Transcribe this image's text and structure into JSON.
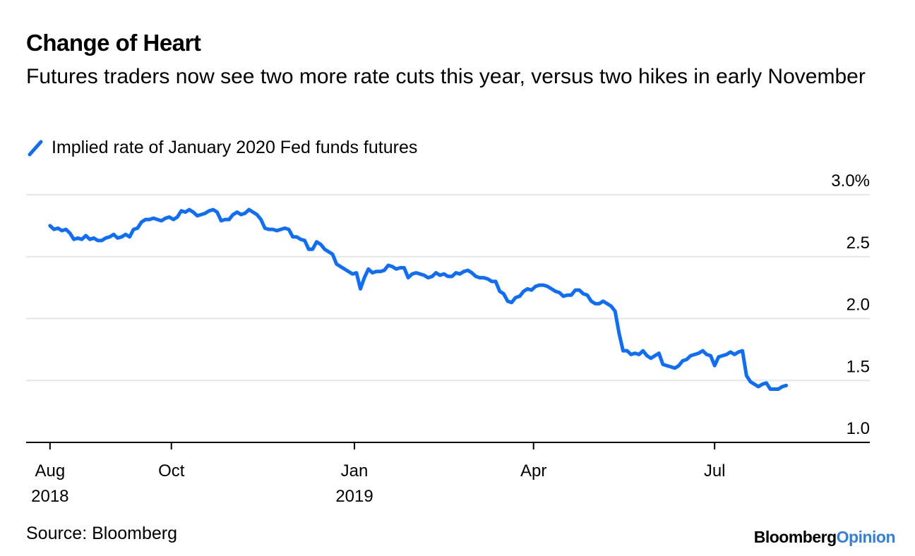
{
  "header": {
    "title": "Change of Heart",
    "subtitle": "Futures traders now see two more rate cuts this year, versus two hikes in early November"
  },
  "legend": {
    "label": "Implied rate of January 2020 Fed funds futures"
  },
  "footer": {
    "source": "Source: Bloomberg",
    "brand_main": "Bloomberg",
    "brand_accent": "Opinion"
  },
  "colors": {
    "series": "#0d6efd",
    "grid": "#e6e6e6",
    "axis": "#000000",
    "brand_accent": "#2f7fe6"
  },
  "chart_data": {
    "type": "line",
    "title": "Change of Heart",
    "xlabel": "",
    "ylabel": "",
    "ylim": [
      1.0,
      3.0
    ],
    "y_ticks": [
      {
        "value": 1.0,
        "label": "1.0"
      },
      {
        "value": 1.5,
        "label": "1.5"
      },
      {
        "value": 2.0,
        "label": "2.0"
      },
      {
        "value": 2.5,
        "label": "2.5"
      },
      {
        "value": 3.0,
        "label": "3.0%"
      }
    ],
    "x_ticks": [
      {
        "day": 0,
        "label": "Aug",
        "sublabel": "2018"
      },
      {
        "day": 61,
        "label": "Oct",
        "sublabel": ""
      },
      {
        "day": 153,
        "label": "Jan",
        "sublabel": "2019"
      },
      {
        "day": 243,
        "label": "Apr",
        "sublabel": ""
      },
      {
        "day": 334,
        "label": "Jul",
        "sublabel": ""
      }
    ],
    "x_range_days": [
      -12,
      412
    ],
    "series": [
      {
        "name": "Implied rate of January 2020 Fed funds futures",
        "points": [
          [
            0,
            2.75
          ],
          [
            2,
            2.72
          ],
          [
            4,
            2.73
          ],
          [
            6,
            2.71
          ],
          [
            8,
            2.72
          ],
          [
            10,
            2.69
          ],
          [
            12,
            2.64
          ],
          [
            14,
            2.65
          ],
          [
            16,
            2.64
          ],
          [
            18,
            2.67
          ],
          [
            20,
            2.64
          ],
          [
            22,
            2.65
          ],
          [
            24,
            2.63
          ],
          [
            26,
            2.63
          ],
          [
            28,
            2.65
          ],
          [
            30,
            2.66
          ],
          [
            32,
            2.68
          ],
          [
            34,
            2.65
          ],
          [
            36,
            2.66
          ],
          [
            38,
            2.68
          ],
          [
            40,
            2.66
          ],
          [
            42,
            2.72
          ],
          [
            44,
            2.73
          ],
          [
            46,
            2.78
          ],
          [
            48,
            2.8
          ],
          [
            50,
            2.8
          ],
          [
            52,
            2.81
          ],
          [
            54,
            2.8
          ],
          [
            56,
            2.79
          ],
          [
            58,
            2.81
          ],
          [
            60,
            2.82
          ],
          [
            62,
            2.8
          ],
          [
            64,
            2.82
          ],
          [
            66,
            2.87
          ],
          [
            68,
            2.86
          ],
          [
            70,
            2.88
          ],
          [
            72,
            2.86
          ],
          [
            74,
            2.83
          ],
          [
            76,
            2.84
          ],
          [
            78,
            2.85
          ],
          [
            80,
            2.87
          ],
          [
            82,
            2.88
          ],
          [
            84,
            2.86
          ],
          [
            86,
            2.79
          ],
          [
            88,
            2.8
          ],
          [
            90,
            2.8
          ],
          [
            92,
            2.84
          ],
          [
            94,
            2.86
          ],
          [
            96,
            2.84
          ],
          [
            98,
            2.85
          ],
          [
            100,
            2.88
          ],
          [
            102,
            2.86
          ],
          [
            104,
            2.84
          ],
          [
            106,
            2.8
          ],
          [
            108,
            2.73
          ],
          [
            110,
            2.72
          ],
          [
            112,
            2.72
          ],
          [
            114,
            2.71
          ],
          [
            116,
            2.72
          ],
          [
            118,
            2.73
          ],
          [
            120,
            2.72
          ],
          [
            122,
            2.66
          ],
          [
            124,
            2.66
          ],
          [
            126,
            2.64
          ],
          [
            128,
            2.63
          ],
          [
            130,
            2.56
          ],
          [
            132,
            2.56
          ],
          [
            134,
            2.62
          ],
          [
            136,
            2.6
          ],
          [
            138,
            2.56
          ],
          [
            140,
            2.54
          ],
          [
            142,
            2.52
          ],
          [
            144,
            2.44
          ],
          [
            146,
            2.42
          ],
          [
            148,
            2.4
          ],
          [
            150,
            2.38
          ],
          [
            152,
            2.36
          ],
          [
            154,
            2.37
          ],
          [
            156,
            2.24
          ],
          [
            158,
            2.33
          ],
          [
            160,
            2.4
          ],
          [
            162,
            2.37
          ],
          [
            164,
            2.38
          ],
          [
            166,
            2.38
          ],
          [
            168,
            2.39
          ],
          [
            170,
            2.43
          ],
          [
            172,
            2.42
          ],
          [
            174,
            2.4
          ],
          [
            176,
            2.41
          ],
          [
            178,
            2.41
          ],
          [
            180,
            2.33
          ],
          [
            182,
            2.36
          ],
          [
            184,
            2.37
          ],
          [
            186,
            2.36
          ],
          [
            188,
            2.35
          ],
          [
            190,
            2.33
          ],
          [
            192,
            2.34
          ],
          [
            194,
            2.37
          ],
          [
            196,
            2.35
          ],
          [
            198,
            2.36
          ],
          [
            200,
            2.34
          ],
          [
            202,
            2.34
          ],
          [
            204,
            2.37
          ],
          [
            206,
            2.36
          ],
          [
            208,
            2.38
          ],
          [
            210,
            2.39
          ],
          [
            212,
            2.37
          ],
          [
            214,
            2.34
          ],
          [
            216,
            2.33
          ],
          [
            218,
            2.33
          ],
          [
            220,
            2.32
          ],
          [
            222,
            2.3
          ],
          [
            224,
            2.3
          ],
          [
            226,
            2.22
          ],
          [
            228,
            2.2
          ],
          [
            230,
            2.14
          ],
          [
            232,
            2.13
          ],
          [
            234,
            2.17
          ],
          [
            236,
            2.18
          ],
          [
            238,
            2.22
          ],
          [
            240,
            2.24
          ],
          [
            242,
            2.23
          ],
          [
            244,
            2.26
          ],
          [
            246,
            2.27
          ],
          [
            248,
            2.27
          ],
          [
            250,
            2.26
          ],
          [
            252,
            2.24
          ],
          [
            254,
            2.22
          ],
          [
            256,
            2.21
          ],
          [
            258,
            2.18
          ],
          [
            260,
            2.19
          ],
          [
            262,
            2.19
          ],
          [
            264,
            2.23
          ],
          [
            266,
            2.23
          ],
          [
            268,
            2.2
          ],
          [
            270,
            2.19
          ],
          [
            272,
            2.14
          ],
          [
            274,
            2.12
          ],
          [
            276,
            2.12
          ],
          [
            278,
            2.14
          ],
          [
            280,
            2.12
          ],
          [
            282,
            2.1
          ],
          [
            284,
            2.06
          ],
          [
            286,
            1.88
          ],
          [
            288,
            1.74
          ],
          [
            290,
            1.74
          ],
          [
            292,
            1.71
          ],
          [
            294,
            1.72
          ],
          [
            296,
            1.71
          ],
          [
            298,
            1.74
          ],
          [
            300,
            1.7
          ],
          [
            302,
            1.68
          ],
          [
            304,
            1.7
          ],
          [
            306,
            1.72
          ],
          [
            308,
            1.63
          ],
          [
            310,
            1.62
          ],
          [
            312,
            1.61
          ],
          [
            314,
            1.6
          ],
          [
            316,
            1.62
          ],
          [
            318,
            1.66
          ],
          [
            320,
            1.67
          ],
          [
            322,
            1.7
          ],
          [
            324,
            1.71
          ],
          [
            326,
            1.72
          ],
          [
            328,
            1.74
          ],
          [
            330,
            1.71
          ],
          [
            332,
            1.7
          ],
          [
            334,
            1.62
          ],
          [
            336,
            1.69
          ],
          [
            338,
            1.7
          ],
          [
            340,
            1.71
          ],
          [
            342,
            1.73
          ],
          [
            344,
            1.71
          ],
          [
            346,
            1.73
          ],
          [
            348,
            1.74
          ],
          [
            350,
            1.54
          ],
          [
            352,
            1.49
          ],
          [
            354,
            1.47
          ],
          [
            356,
            1.45
          ],
          [
            358,
            1.47
          ],
          [
            360,
            1.48
          ],
          [
            362,
            1.43
          ],
          [
            364,
            1.43
          ],
          [
            366,
            1.43
          ],
          [
            368,
            1.45
          ],
          [
            370,
            1.46
          ]
        ]
      }
    ]
  }
}
